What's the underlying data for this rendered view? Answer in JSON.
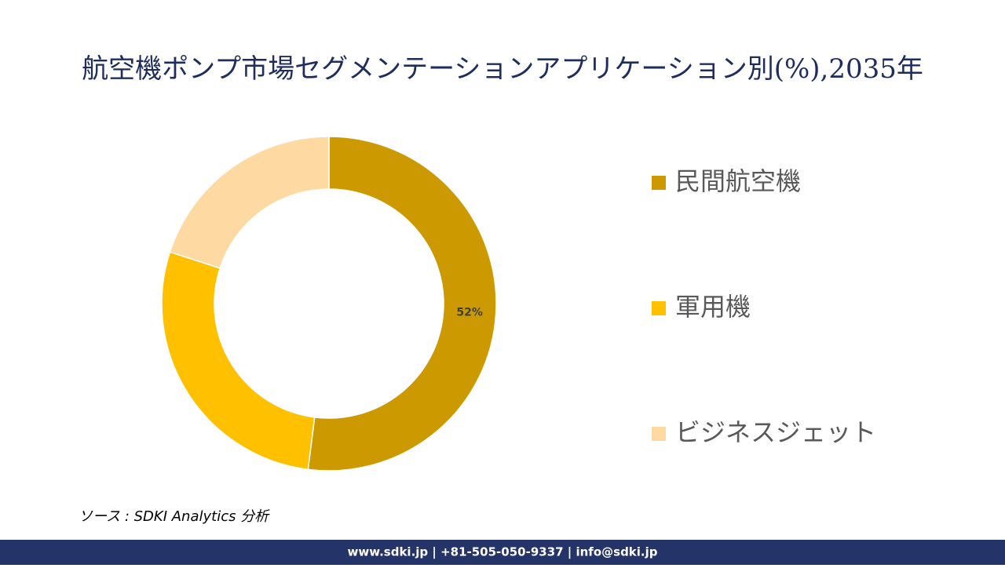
{
  "chart_data": {
    "type": "donut",
    "title": "航空機ポンプ市場セグメンテーションアプリケーション別(%),2035年",
    "categories": [
      "民間航空機",
      "軍用機",
      "ビジネスジェット"
    ],
    "values": [
      52,
      28,
      20
    ],
    "value_labels": [
      "52%",
      null,
      null
    ],
    "colors": [
      "#cc9900",
      "#ffc000",
      "#fed9a1"
    ],
    "legend": "right"
  },
  "source": "ソース : SDKI Analytics 分析",
  "footer": "www.sdki.jp | +81-505-050-9337 | info@sdki.jp"
}
